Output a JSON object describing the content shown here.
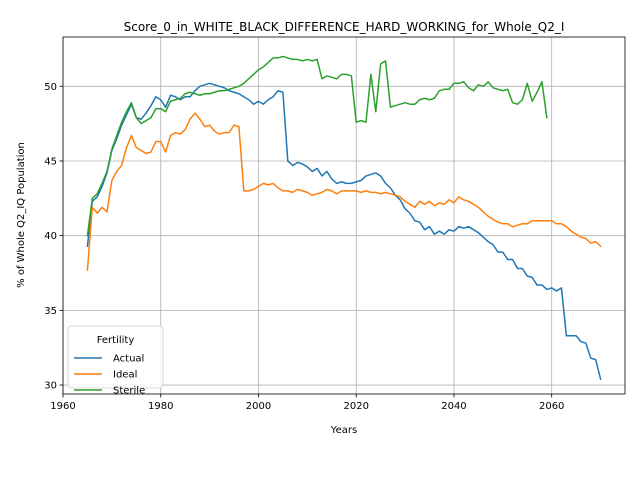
{
  "chart_data": {
    "type": "line",
    "title": "Score_0_in_WHITE_BLACK_DIFFERENCE_HARD_WORKING_for_Whole_Q2_I",
    "xlabel": "Years",
    "ylabel": "% of Whole Q2_IQ Population",
    "xlim": [
      1960,
      2075
    ],
    "ylim": [
      29.4,
      53.3
    ],
    "xticks": [
      1960,
      1980,
      2000,
      2020,
      2040,
      2060
    ],
    "yticks": [
      30,
      35,
      40,
      45,
      50
    ],
    "grid": true,
    "legend": {
      "title": "Fertility",
      "placement": "lower-left"
    },
    "series": [
      {
        "name": "Actual",
        "color": "#1f77b4",
        "x": [
          1965,
          1966,
          1967,
          1968,
          1969,
          1970,
          1971,
          1972,
          1973,
          1974,
          1975,
          1976,
          1977,
          1978,
          1979,
          1980,
          1981,
          1982,
          1983,
          1984,
          1985,
          1986,
          1987,
          1988,
          1989,
          1990,
          1991,
          1992,
          1993,
          1994,
          1995,
          1996,
          1997,
          1998,
          1999,
          2000,
          2001,
          2002,
          2003,
          2004,
          2005,
          2006,
          2007,
          2008,
          2009,
          2010,
          2011,
          2012,
          2013,
          2014,
          2015,
          2016,
          2017,
          2018,
          2019,
          2020,
          2021,
          2022,
          2023,
          2024,
          2025,
          2026,
          2027,
          2028,
          2029,
          2030,
          2031,
          2032,
          2033,
          2034,
          2035,
          2036,
          2037,
          2038,
          2039,
          2040,
          2041,
          2042,
          2043,
          2044,
          2045,
          2046,
          2047,
          2048,
          2049,
          2050,
          2051,
          2052,
          2053,
          2054,
          2055,
          2056,
          2057,
          2058,
          2059,
          2060,
          2061,
          2062,
          2063,
          2064,
          2065,
          2066,
          2067,
          2068,
          2069,
          2070
        ],
        "values": [
          39.3,
          42.3,
          42.6,
          43.3,
          44.2,
          45.7,
          46.5,
          47.4,
          48.1,
          48.8,
          47.9,
          47.8,
          48.2,
          48.7,
          49.3,
          49.1,
          48.6,
          49.4,
          49.3,
          49.1,
          49.3,
          49.3,
          49.7,
          50.0,
          50.1,
          50.2,
          50.1,
          50.0,
          49.9,
          49.7,
          49.6,
          49.5,
          49.3,
          49.1,
          48.8,
          49.0,
          48.8,
          49.1,
          49.3,
          49.7,
          49.6,
          45.0,
          44.7,
          44.9,
          44.8,
          44.6,
          44.3,
          44.5,
          44.0,
          44.3,
          43.8,
          43.5,
          43.6,
          43.5,
          43.5,
          43.6,
          43.7,
          44.0,
          44.1,
          44.2,
          44.0,
          43.5,
          43.2,
          42.7,
          42.4,
          41.8,
          41.5,
          41.0,
          40.9,
          40.4,
          40.6,
          40.1,
          40.3,
          40.1,
          40.4,
          40.3,
          40.6,
          40.5,
          40.6,
          40.4,
          40.2,
          39.9,
          39.6,
          39.4,
          38.9,
          38.9,
          38.4,
          38.4,
          37.8,
          37.8,
          37.3,
          37.2,
          36.7,
          36.7,
          36.4,
          36.5,
          36.3,
          36.5,
          33.3,
          33.3,
          33.3,
          32.9,
          32.8,
          31.8,
          31.7,
          30.4
        ]
      },
      {
        "name": "Ideal",
        "color": "#ff7f0e",
        "x": [
          1965,
          1966,
          1967,
          1968,
          1969,
          1970,
          1971,
          1972,
          1973,
          1974,
          1975,
          1976,
          1977,
          1978,
          1979,
          1980,
          1981,
          1982,
          1983,
          1984,
          1985,
          1986,
          1987,
          1988,
          1989,
          1990,
          1991,
          1992,
          1993,
          1994,
          1995,
          1996,
          1997,
          1998,
          1999,
          2000,
          2001,
          2002,
          2003,
          2004,
          2005,
          2006,
          2007,
          2008,
          2009,
          2010,
          2011,
          2012,
          2013,
          2014,
          2015,
          2016,
          2017,
          2018,
          2019,
          2020,
          2021,
          2022,
          2023,
          2024,
          2025,
          2026,
          2027,
          2028,
          2029,
          2030,
          2031,
          2032,
          2033,
          2034,
          2035,
          2036,
          2037,
          2038,
          2039,
          2040,
          2041,
          2042,
          2043,
          2044,
          2045,
          2046,
          2047,
          2048,
          2049,
          2050,
          2051,
          2052,
          2053,
          2054,
          2055,
          2056,
          2057,
          2058,
          2059,
          2060,
          2061,
          2062,
          2063,
          2064,
          2065,
          2066,
          2067,
          2068,
          2069,
          2070
        ],
        "values": [
          37.7,
          41.9,
          41.5,
          41.9,
          41.6,
          43.7,
          44.3,
          44.7,
          45.9,
          46.7,
          45.9,
          45.7,
          45.5,
          45.6,
          46.3,
          46.3,
          45.6,
          46.7,
          46.9,
          46.8,
          47.1,
          47.8,
          48.2,
          47.8,
          47.3,
          47.4,
          47.0,
          46.8,
          46.9,
          46.9,
          47.4,
          47.3,
          43.0,
          43.0,
          43.1,
          43.3,
          43.5,
          43.4,
          43.5,
          43.2,
          43.0,
          43.0,
          42.9,
          43.1,
          43.0,
          42.9,
          42.7,
          42.8,
          42.9,
          43.1,
          43.0,
          42.8,
          43.0,
          43.0,
          43.0,
          43.0,
          42.9,
          43.0,
          42.9,
          42.9,
          42.8,
          42.9,
          42.8,
          42.7,
          42.6,
          42.3,
          42.1,
          41.9,
          42.3,
          42.1,
          42.3,
          42.0,
          42.2,
          42.1,
          42.4,
          42.2,
          42.6,
          42.4,
          42.3,
          42.1,
          41.9,
          41.6,
          41.3,
          41.1,
          40.9,
          40.8,
          40.8,
          40.6,
          40.7,
          40.8,
          40.8,
          41.0,
          41.0,
          41.0,
          41.0,
          41.0,
          40.8,
          40.8,
          40.6,
          40.3,
          40.1,
          39.9,
          39.8,
          39.5,
          39.6,
          39.3
        ]
      },
      {
        "name": "Sterile",
        "color": "#2ca02c",
        "x": [
          1965,
          1966,
          1967,
          1968,
          1969,
          1970,
          1971,
          1972,
          1973,
          1974,
          1975,
          1976,
          1977,
          1978,
          1979,
          1980,
          1981,
          1982,
          1983,
          1984,
          1985,
          1986,
          1987,
          1988,
          1989,
          1990,
          1991,
          1992,
          1993,
          1994,
          1995,
          1996,
          1997,
          1998,
          1999,
          2000,
          2001,
          2002,
          2003,
          2004,
          2005,
          2006,
          2007,
          2008,
          2009,
          2010,
          2011,
          2012,
          2013,
          2014,
          2015,
          2016,
          2017,
          2018,
          2019,
          2020,
          2021,
          2022,
          2023,
          2024,
          2025,
          2026,
          2027,
          2028,
          2029,
          2030,
          2031,
          2032,
          2033,
          2034,
          2035,
          2036,
          2037,
          2038,
          2039,
          2040,
          2041,
          2042,
          2043,
          2044,
          2045,
          2046,
          2047,
          2048,
          2049,
          2050,
          2051,
          2052,
          2053,
          2054,
          2055,
          2056,
          2057,
          2058,
          2059
        ],
        "values": [
          40.0,
          42.5,
          42.8,
          43.5,
          44.3,
          45.8,
          46.7,
          47.6,
          48.3,
          48.9,
          47.9,
          47.5,
          47.7,
          47.9,
          48.5,
          48.5,
          48.3,
          49.0,
          49.1,
          49.2,
          49.5,
          49.6,
          49.5,
          49.4,
          49.5,
          49.5,
          49.6,
          49.7,
          49.7,
          49.8,
          49.9,
          50.0,
          50.2,
          50.5,
          50.8,
          51.1,
          51.3,
          51.6,
          51.9,
          51.9,
          52.0,
          51.9,
          51.8,
          51.8,
          51.7,
          51.8,
          51.7,
          51.8,
          50.5,
          50.7,
          50.6,
          50.5,
          50.8,
          50.8,
          50.7,
          47.6,
          47.7,
          47.6,
          50.8,
          48.3,
          51.5,
          51.7,
          48.6,
          48.7,
          48.8,
          48.9,
          48.8,
          48.8,
          49.1,
          49.2,
          49.1,
          49.2,
          49.7,
          49.8,
          49.8,
          50.2,
          50.2,
          50.3,
          49.9,
          49.7,
          50.1,
          50.0,
          50.3,
          49.9,
          49.8,
          49.7,
          49.8,
          48.9,
          48.8,
          49.1,
          50.2,
          49.0,
          49.6,
          50.3,
          47.9
        ]
      }
    ]
  }
}
